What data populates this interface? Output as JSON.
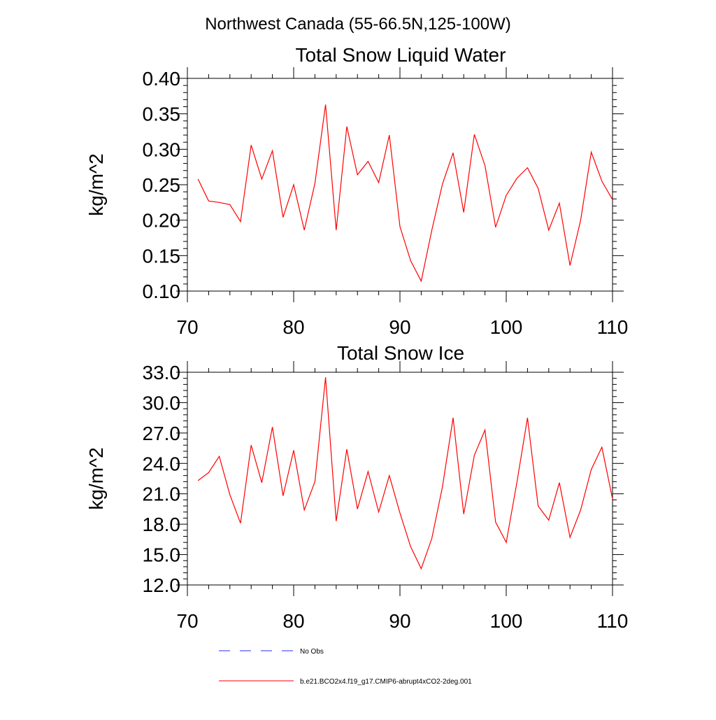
{
  "figure": {
    "region_title": "Northwest Canada (55-66.5N,125-100W)"
  },
  "chart_data": [
    {
      "type": "line",
      "title": "Total Snow Liquid Water",
      "ylabel": "kg/m^2",
      "xlabel": "",
      "xlim": [
        70,
        110
      ],
      "ylim": [
        0.1,
        0.4
      ],
      "x_ticks": [
        "70",
        "80",
        "90",
        "100",
        "110"
      ],
      "y_ticks": [
        "0.10",
        "0.15",
        "0.20",
        "0.25",
        "0.30",
        "0.35",
        "0.40"
      ],
      "grid": false,
      "series": [
        {
          "name": "b.e21.BCO2x4.f19_g17.CMIP6-abrupt4xCO2-2deg.001",
          "color": "#ff0000",
          "x": [
            71,
            72,
            73,
            74,
            75,
            76,
            77,
            78,
            79,
            80,
            81,
            82,
            83,
            84,
            85,
            86,
            87,
            88,
            89,
            90,
            91,
            92,
            93,
            94,
            95,
            96,
            97,
            98,
            99,
            100,
            101,
            102,
            103,
            104,
            105,
            106,
            107,
            108,
            109,
            110
          ],
          "values": [
            0.258,
            0.227,
            0.225,
            0.222,
            0.198,
            0.306,
            0.258,
            0.298,
            0.204,
            0.25,
            0.186,
            0.252,
            0.363,
            0.186,
            0.332,
            0.264,
            0.283,
            0.253,
            0.32,
            0.191,
            0.143,
            0.114,
            0.186,
            0.251,
            0.295,
            0.211,
            0.321,
            0.277,
            0.19,
            0.235,
            0.259,
            0.274,
            0.245,
            0.186,
            0.224,
            0.136,
            0.2,
            0.296,
            0.255,
            0.229
          ]
        }
      ]
    },
    {
      "type": "line",
      "title": "Total Snow Ice",
      "ylabel": "kg/m^2",
      "xlabel": "",
      "xlim": [
        70,
        110
      ],
      "ylim": [
        12.0,
        33.0
      ],
      "x_ticks": [
        "70",
        "80",
        "90",
        "100",
        "110"
      ],
      "y_ticks": [
        "12.0",
        "15.0",
        "18.0",
        "21.0",
        "24.0",
        "27.0",
        "30.0",
        "33.0"
      ],
      "grid": false,
      "series": [
        {
          "name": "b.e21.BCO2x4.f19_g17.CMIP6-abrupt4xCO2-2deg.001",
          "color": "#ff0000",
          "x": [
            71,
            72,
            73,
            74,
            75,
            76,
            77,
            78,
            79,
            80,
            81,
            82,
            83,
            84,
            85,
            86,
            87,
            88,
            89,
            90,
            91,
            92,
            93,
            94,
            95,
            96,
            97,
            98,
            99,
            100,
            101,
            102,
            103,
            104,
            105,
            106,
            107,
            108,
            109,
            110
          ],
          "values": [
            22.3,
            23.1,
            24.7,
            20.9,
            18.1,
            25.8,
            22.1,
            27.6,
            20.8,
            25.3,
            19.4,
            22.2,
            32.5,
            18.3,
            25.4,
            19.5,
            23.2,
            19.2,
            22.8,
            19.1,
            15.8,
            13.6,
            16.6,
            21.7,
            28.5,
            19.0,
            24.8,
            27.3,
            18.2,
            16.2,
            22.1,
            28.5,
            19.8,
            18.4,
            22.1,
            16.7,
            19.4,
            23.4,
            25.6,
            20.5
          ]
        }
      ]
    }
  ],
  "legend": {
    "placement": "bottom",
    "entries": [
      {
        "label": "No Obs",
        "color": "#2b2bff",
        "style": "dashed"
      },
      {
        "label": "b.e21.BCO2x4.f19_g17.CMIP6-abrupt4xCO2-2deg.001",
        "color": "#ff0000",
        "style": "solid"
      }
    ]
  }
}
